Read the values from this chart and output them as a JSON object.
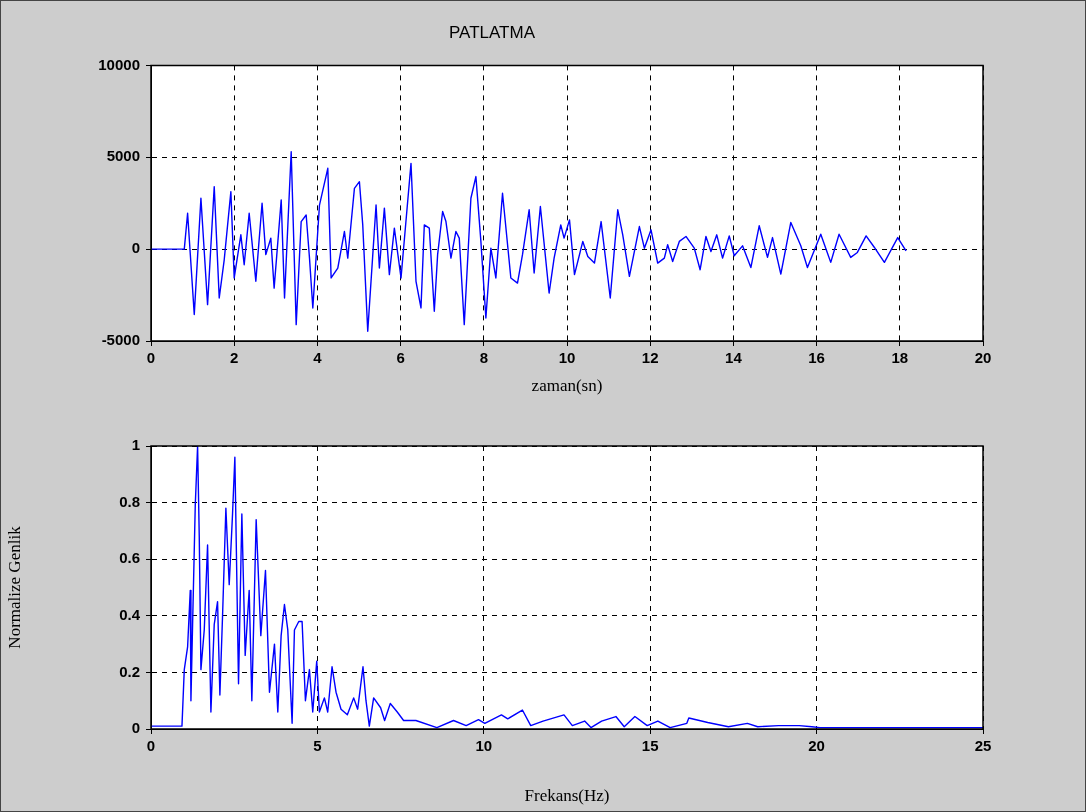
{
  "chart_data": [
    {
      "type": "line",
      "title": "PATLATMA",
      "xlabel": "zaman(sn)",
      "color": "#0000ff",
      "grid": true,
      "xlim": [
        0,
        20
      ],
      "xticks": [
        0,
        2,
        4,
        6,
        8,
        10,
        12,
        14,
        16,
        18,
        20
      ],
      "ylim": [
        -5000,
        10000
      ],
      "yticks": [
        -5000,
        0,
        5000,
        10000
      ],
      "x": [
        0,
        0.8,
        0.88,
        1.04,
        1.2,
        1.36,
        1.52,
        1.64,
        1.76,
        1.92,
        2.0,
        2.16,
        2.24,
        2.36,
        2.52,
        2.67,
        2.76,
        2.88,
        2.96,
        3.13,
        3.21,
        3.37,
        3.49,
        3.61,
        3.73,
        3.81,
        3.89,
        4.05,
        4.25,
        4.33,
        4.49,
        4.65,
        4.73,
        4.89,
        5.01,
        5.09,
        5.21,
        5.41,
        5.49,
        5.61,
        5.73,
        5.85,
        6.01,
        6.25,
        6.37,
        6.49,
        6.57,
        6.69,
        6.81,
        6.89,
        7.01,
        7.09,
        7.21,
        7.33,
        7.41,
        7.53,
        7.69,
        7.81,
        7.93,
        8.05,
        8.17,
        8.29,
        8.45,
        8.65,
        8.81,
        8.93,
        9.09,
        9.21,
        9.36,
        9.57,
        9.69,
        9.85,
        9.93,
        10.06,
        10.18,
        10.38,
        10.5,
        10.66,
        10.82,
        11.04,
        11.22,
        11.34,
        11.5,
        11.74,
        11.86,
        12.02,
        12.18,
        12.34,
        12.42,
        12.54,
        12.7,
        12.86,
        13.06,
        13.2,
        13.34,
        13.46,
        13.6,
        13.74,
        13.9,
        14.02,
        14.22,
        14.42,
        14.62,
        14.82,
        14.94,
        15.14,
        15.38,
        15.62,
        15.78,
        16.1,
        16.34,
        16.54,
        16.82,
        16.98,
        17.19,
        17.39,
        17.63,
        17.95,
        18.15
      ],
      "values": [
        0,
        0,
        1950,
        -3560,
        2770,
        -3020,
        3400,
        -2660,
        -580,
        3130,
        -1570,
        780,
        -850,
        1950,
        -1750,
        2500,
        -300,
        600,
        -2120,
        2680,
        -2660,
        5300,
        -4110,
        1500,
        1860,
        -490,
        -3200,
        2400,
        4400,
        -1570,
        -1030,
        960,
        -490,
        3310,
        3670,
        1320,
        -4470,
        2400,
        -1030,
        2230,
        -1390,
        1140,
        -1570,
        4670,
        -1750,
        -3200,
        1320,
        1140,
        -3380,
        -300,
        2050,
        1500,
        -490,
        960,
        600,
        -4110,
        2770,
        3950,
        420,
        -3750,
        50,
        -1570,
        3040,
        -1570,
        -1850,
        -300,
        2140,
        -1300,
        2320,
        -2390,
        -490,
        1320,
        600,
        1590,
        -1390,
        420,
        -400,
        -760,
        1500,
        -2660,
        2140,
        780,
        -1480,
        1230,
        50,
        1050,
        -760,
        -490,
        240,
        -670,
        420,
        690,
        50,
        -1120,
        690,
        -130,
        780,
        -490,
        720,
        -360,
        180,
        -1000,
        1270,
        -450,
        630,
        -1360,
        1450,
        180,
        -1000,
        810,
        -720,
        810,
        -450,
        -180,
        720,
        90,
        -720,
        630,
        -90
      ]
    },
    {
      "type": "line",
      "xlabel": "Frekans(Hz)",
      "ylabel": "Normalize Genlik",
      "color": "#0000ff",
      "grid": true,
      "xlim": [
        0,
        25
      ],
      "xticks": [
        0,
        5,
        10,
        15,
        20,
        25
      ],
      "ylim": [
        0,
        1
      ],
      "yticks": [
        0,
        0.2,
        0.4,
        0.6,
        0.8,
        1
      ],
      "x": [
        0,
        0.93,
        1.0,
        1.1,
        1.18,
        1.2,
        1.25,
        1.33,
        1.4,
        1.45,
        1.5,
        1.6,
        1.7,
        1.8,
        1.9,
        2.0,
        2.07,
        2.15,
        2.25,
        2.35,
        2.45,
        2.52,
        2.63,
        2.73,
        2.83,
        2.95,
        3.03,
        3.16,
        3.3,
        3.44,
        3.56,
        3.71,
        3.81,
        3.91,
        4.01,
        4.11,
        4.24,
        4.31,
        4.44,
        4.54,
        4.64,
        4.76,
        4.86,
        4.98,
        5.06,
        5.21,
        5.31,
        5.44,
        5.56,
        5.71,
        5.9,
        6.09,
        6.21,
        6.37,
        6.46,
        6.56,
        6.69,
        6.9,
        7.02,
        7.19,
        7.4,
        7.59,
        7.96,
        8.59,
        9.09,
        9.47,
        9.84,
        10.03,
        10.53,
        10.72,
        11.16,
        11.41,
        11.78,
        12.41,
        12.66,
        13.03,
        13.22,
        13.54,
        13.97,
        14.22,
        14.54,
        14.91,
        15.23,
        15.6,
        16.1,
        16.16,
        16.73,
        17.35,
        17.92,
        18.23,
        18.86,
        19.48,
        19.86,
        20.1,
        25
      ],
      "values": [
        0.01,
        0.01,
        0.21,
        0.29,
        0.49,
        0.1,
        0.37,
        0.79,
        1.0,
        0.68,
        0.21,
        0.35,
        0.65,
        0.06,
        0.37,
        0.45,
        0.12,
        0.4,
        0.78,
        0.51,
        0.76,
        0.96,
        0.16,
        0.76,
        0.26,
        0.49,
        0.1,
        0.74,
        0.33,
        0.56,
        0.13,
        0.3,
        0.06,
        0.33,
        0.44,
        0.35,
        0.02,
        0.35,
        0.38,
        0.38,
        0.1,
        0.21,
        0.06,
        0.24,
        0.06,
        0.11,
        0.06,
        0.22,
        0.13,
        0.07,
        0.05,
        0.11,
        0.07,
        0.22,
        0.1,
        0.01,
        0.11,
        0.075,
        0.03,
        0.09,
        0.06,
        0.03,
        0.03,
        0.005,
        0.03,
        0.012,
        0.033,
        0.02,
        0.05,
        0.036,
        0.067,
        0.012,
        0.028,
        0.05,
        0.012,
        0.028,
        0.005,
        0.028,
        0.044,
        0.008,
        0.044,
        0.012,
        0.028,
        0.005,
        0.02,
        0.039,
        0.023,
        0.008,
        0.02,
        0.008,
        0.012,
        0.012,
        0.008,
        0.005,
        0.005
      ]
    }
  ]
}
